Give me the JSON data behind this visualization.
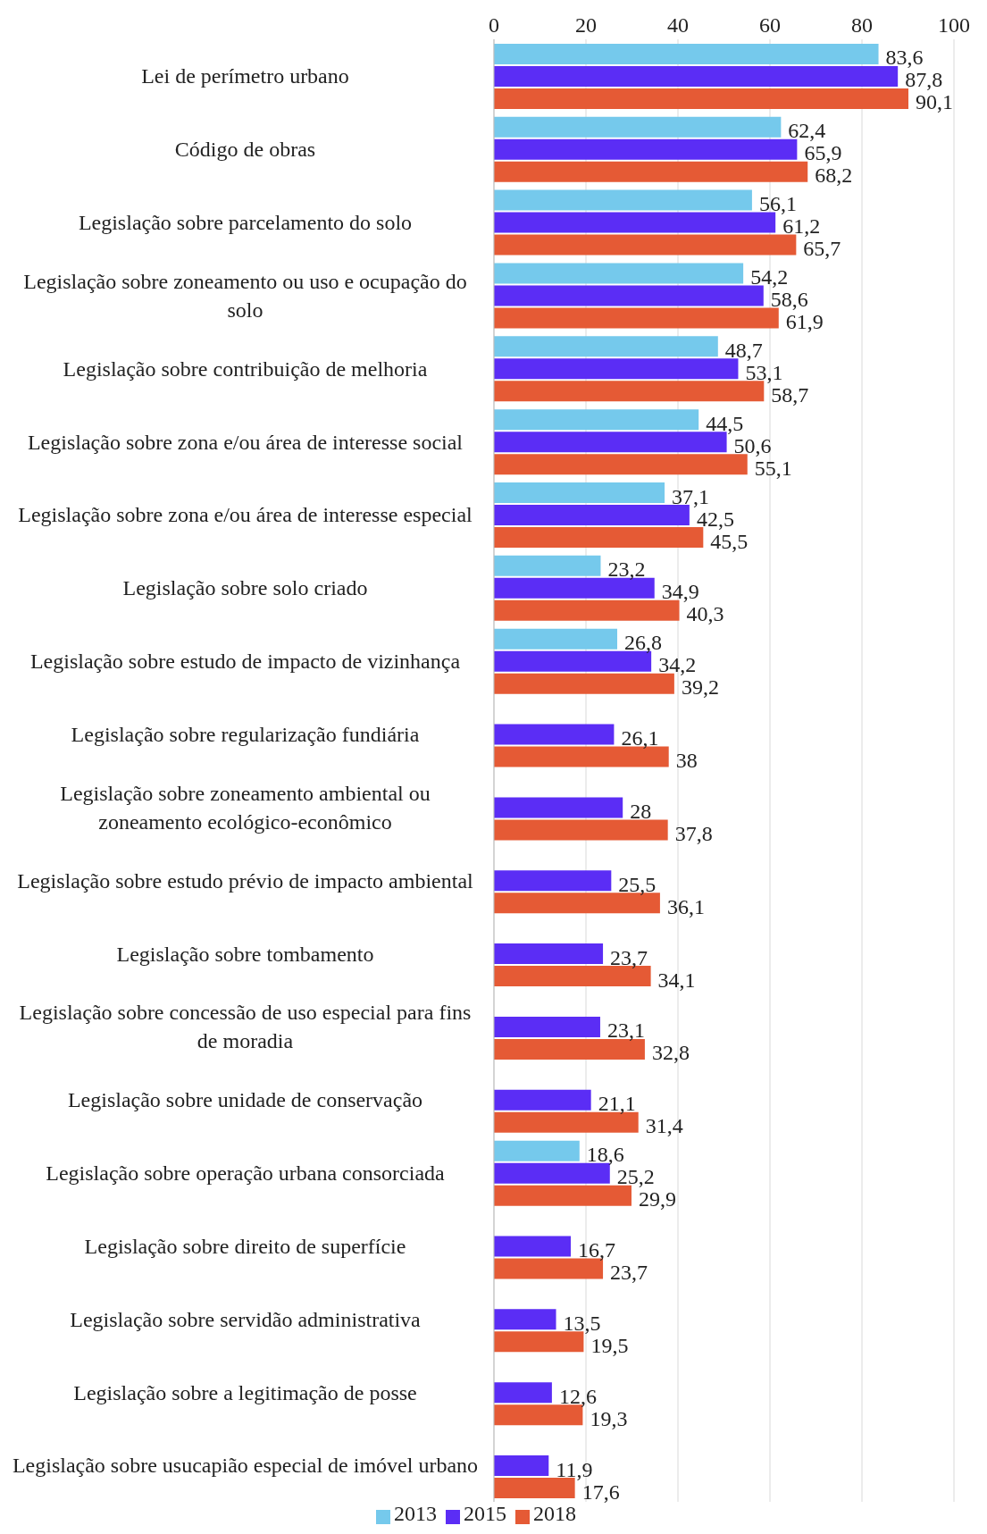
{
  "chart_data": {
    "type": "bar",
    "orientation": "horizontal",
    "categories": [
      "Lei de perímetro urbano",
      "Código de obras",
      "Legislação sobre parcelamento do solo",
      "Legislação sobre zoneamento ou uso e ocupação do solo",
      "Legislação sobre contribuição de melhoria",
      "Legislação sobre zona e/ou área de interesse social",
      "Legislação sobre zona e/ou área de interesse especial",
      "Legislação sobre solo criado",
      "Legislação sobre estudo de impacto de vizinhança",
      "Legislação sobre regularização fundiária",
      "Legislação sobre zoneamento ambiental ou zoneamento ecológico-econômico",
      "Legislação sobre estudo prévio de impacto ambiental",
      "Legislação sobre tombamento",
      "Legislação sobre concessão de uso especial para fins de moradia",
      "Legislação sobre unidade de conservação",
      "Legislação sobre operação urbana consorciada",
      "Legislação sobre direito de superfície",
      "Legislação sobre servidão administrativa",
      "Legislação sobre a legitimação de posse",
      "Legislação sobre usucapião especial de imóvel urbano"
    ],
    "series": [
      {
        "name": "2013",
        "color": "#75c9ec",
        "values": [
          83.6,
          62.4,
          56.1,
          54.2,
          48.7,
          44.5,
          37.1,
          23.2,
          26.8,
          null,
          null,
          null,
          null,
          null,
          null,
          18.6,
          null,
          null,
          null,
          null
        ],
        "value_labels": [
          "83,6",
          "62,4",
          "56,1",
          "54,2",
          "48,7",
          "44,5",
          "37,1",
          "23,2",
          "26,8",
          null,
          null,
          null,
          null,
          null,
          null,
          "18,6",
          null,
          null,
          null,
          null
        ]
      },
      {
        "name": "2015",
        "color": "#5b2df5",
        "values": [
          87.8,
          65.9,
          61.2,
          58.6,
          53.1,
          50.6,
          42.5,
          34.9,
          34.2,
          26.1,
          28,
          25.5,
          23.7,
          23.1,
          21.1,
          25.2,
          16.7,
          13.5,
          12.6,
          11.9
        ],
        "value_labels": [
          "87,8",
          "65,9",
          "61,2",
          "58,6",
          "53,1",
          "50,6",
          "42,5",
          "34,9",
          "34,2",
          "26,1",
          "28",
          "25,5",
          "23,7",
          "23,1",
          "21,1",
          "25,2",
          "16,7",
          "13,5",
          "12,6",
          "11,9"
        ]
      },
      {
        "name": "2018",
        "color": "#e55a35",
        "values": [
          90.1,
          68.2,
          65.7,
          61.9,
          58.7,
          55.1,
          45.5,
          40.3,
          39.2,
          38,
          37.8,
          36.1,
          34.1,
          32.8,
          31.4,
          29.9,
          23.7,
          19.5,
          19.3,
          17.6
        ],
        "value_labels": [
          "90,1",
          "68,2",
          "65,7",
          "61,9",
          "58,7",
          "55,1",
          "45,5",
          "40,3",
          "39,2",
          "38",
          "37,8",
          "36,1",
          "34,1",
          "32,8",
          "31,4",
          "29,9",
          "23,7",
          "19,5",
          "19,3",
          "17,6"
        ]
      }
    ],
    "xlim": [
      0,
      100
    ],
    "xticks": [
      0,
      20,
      40,
      60,
      80,
      100
    ],
    "grid": "x",
    "legend": "bottom"
  }
}
